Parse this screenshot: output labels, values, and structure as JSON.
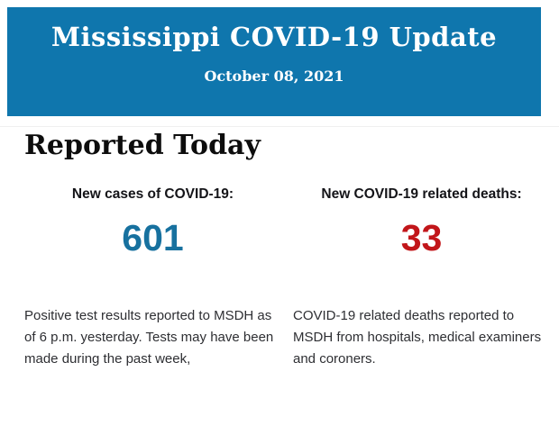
{
  "banner": {
    "title": "Mississippi COVID-19 Update",
    "date": "October 08, 2021",
    "bg_color": "#0f76ad",
    "text_color": "#ffffff"
  },
  "main": {
    "heading": "Reported Today",
    "stats": [
      {
        "label": "New cases of COVID-19:",
        "value": "601",
        "value_color": "#17719f",
        "description": "Positive test results reported to MSDH as of 6 p.m. yesterday. Tests may have been made during the past week,"
      },
      {
        "label": "New COVID-19 related deaths:",
        "value": "33",
        "value_color": "#c2161a",
        "description": "COVID-19 related deaths reported to MSDH from hospitals, medical examiners and coroners."
      }
    ]
  }
}
